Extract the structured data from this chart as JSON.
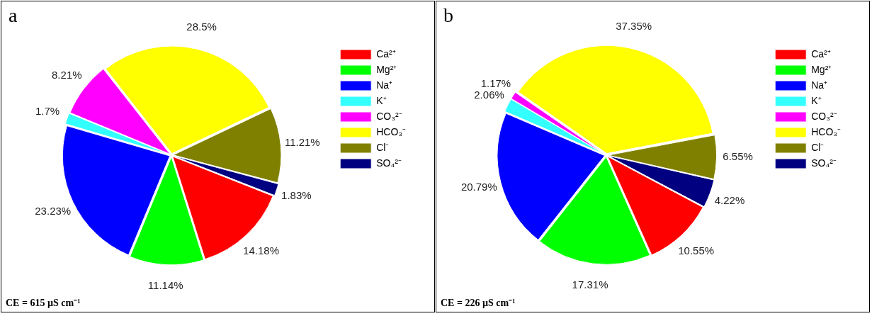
{
  "chart_data": [
    {
      "type": "pie",
      "title": "a",
      "categories": [
        "Ca²⁺",
        "Mg²⁺",
        "Na⁺",
        "K⁺",
        "CO₃²⁻",
        "HCO₃⁻",
        "Cl⁻",
        "SO₄²⁻"
      ],
      "values": [
        14.18,
        11.14,
        23.23,
        1.7,
        8.21,
        28.5,
        11.21,
        1.83
      ],
      "colors": [
        "#ff0000",
        "#00ff00",
        "#0000ff",
        "#33ffff",
        "#ff00ff",
        "#ffff00",
        "#808000",
        "#000080"
      ],
      "value_labels": [
        "14.18%",
        "11.14%",
        "23.23%",
        "1.7%",
        "8.21%",
        "28.5%",
        "11.21%",
        "1.83%"
      ],
      "legend": "top right",
      "annotations": [
        "CE = 615 µS cm⁻¹"
      ]
    },
    {
      "type": "pie",
      "title": "b",
      "categories": [
        "Ca²⁺",
        "Mg²⁺",
        "Na⁺",
        "K⁺",
        "CO₃²⁻",
        "HCO₃⁻",
        "Cl⁻",
        "SO₄²⁻"
      ],
      "values": [
        10.55,
        17.31,
        20.79,
        2.06,
        1.17,
        37.35,
        6.55,
        4.22
      ],
      "colors": [
        "#ff0000",
        "#00ff00",
        "#0000ff",
        "#33ffff",
        "#ff00ff",
        "#ffff00",
        "#808000",
        "#000080"
      ],
      "value_labels": [
        "10.55%",
        "17.31%",
        "20.79%",
        "2.06%",
        "1.17%",
        "37.35%",
        "6.55%",
        "4.22%"
      ],
      "legend": "top right",
      "annotations": [
        "CE = 226 µS cm⁻¹"
      ]
    }
  ]
}
